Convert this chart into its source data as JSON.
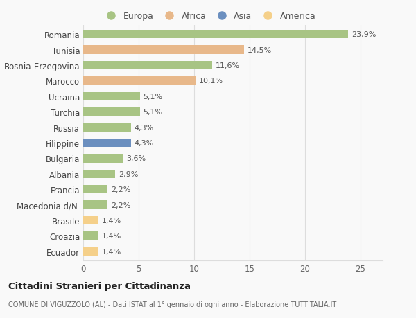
{
  "categories": [
    "Romania",
    "Tunisia",
    "Bosnia-Erzegovina",
    "Marocco",
    "Ucraina",
    "Turchia",
    "Russia",
    "Filippine",
    "Bulgaria",
    "Albania",
    "Francia",
    "Macedonia d/N.",
    "Brasile",
    "Croazia",
    "Ecuador"
  ],
  "values": [
    23.9,
    14.5,
    11.6,
    10.1,
    5.1,
    5.1,
    4.3,
    4.3,
    3.6,
    2.9,
    2.2,
    2.2,
    1.4,
    1.4,
    1.4
  ],
  "labels": [
    "23,9%",
    "14,5%",
    "11,6%",
    "10,1%",
    "5,1%",
    "5,1%",
    "4,3%",
    "4,3%",
    "3,6%",
    "2,9%",
    "2,2%",
    "2,2%",
    "1,4%",
    "1,4%",
    "1,4%"
  ],
  "continents": [
    "Europa",
    "Africa",
    "Europa",
    "Africa",
    "Europa",
    "Europa",
    "Europa",
    "Asia",
    "Europa",
    "Europa",
    "Europa",
    "Europa",
    "America",
    "Europa",
    "America"
  ],
  "colors": {
    "Europa": "#a8c484",
    "Africa": "#e8b88a",
    "Asia": "#6b8fbf",
    "America": "#f5d08a"
  },
  "xlim": [
    0,
    27
  ],
  "xticks": [
    0,
    5,
    10,
    15,
    20,
    25
  ],
  "background_color": "#f9f9f9",
  "title": "Cittadini Stranieri per Cittadinanza",
  "subtitle": "COMUNE DI VIGUZZOLO (AL) - Dati ISTAT al 1° gennaio di ogni anno - Elaborazione TUTTITALIA.IT",
  "bar_height": 0.55,
  "gridcolor": "#dddddd",
  "legend_order": [
    "Europa",
    "Africa",
    "Asia",
    "America"
  ]
}
